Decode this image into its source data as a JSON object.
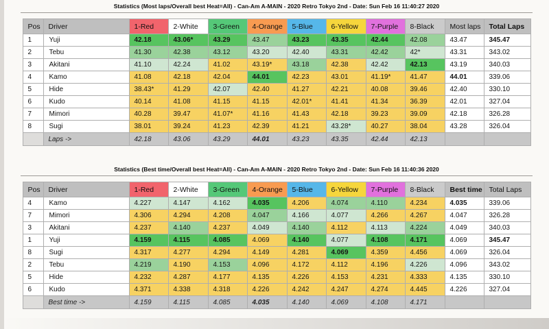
{
  "columns": {
    "pos": "Pos",
    "driver": "Driver",
    "lanes": [
      {
        "label": "1-Red",
        "color": "#f1646c"
      },
      {
        "label": "2-White",
        "color": "#ffffff"
      },
      {
        "label": "3-Green",
        "color": "#55c878"
      },
      {
        "label": "4-Orange",
        "color": "#f89b51"
      },
      {
        "label": "5-Blue",
        "color": "#56b7e9"
      },
      {
        "label": "6-Yellow",
        "color": "#f6d63c"
      },
      {
        "label": "7-Purple",
        "color": "#e171dd"
      },
      {
        "label": "8-Black",
        "color": "#cbcbcb"
      }
    ]
  },
  "tier_colors": {
    "g": "#57c45f",
    "m": "#9ad29b",
    "p": "#cfe6d1",
    "y": "#f7d262",
    "w": "#ffffff"
  },
  "tables": [
    {
      "title": "Statistics (Most laps/Overall best Heat=All) - Can-Am A-MAIN - 2020 Retro Tokyo 2nd - Date: Sun Feb 16 11:40:27 2020",
      "summary_header": "Most laps",
      "summary_header_bold": false,
      "total_header": "Total Laps",
      "total_header_bold": true,
      "footer_label": "Laps ->",
      "rows": [
        {
          "pos": "1",
          "driver": "Yuji",
          "cells": [
            {
              "v": "42.18",
              "t": "g",
              "b": true
            },
            {
              "v": "43.06*",
              "t": "g",
              "b": true
            },
            {
              "v": "43.29",
              "t": "g",
              "b": true
            },
            {
              "v": "43.47",
              "t": "m"
            },
            {
              "v": "43.23",
              "t": "g",
              "b": true
            },
            {
              "v": "43.35",
              "t": "g",
              "b": true
            },
            {
              "v": "42.44",
              "t": "g",
              "b": true
            },
            {
              "v": "42.08",
              "t": "m"
            }
          ],
          "summary": {
            "v": "43.47"
          },
          "total": {
            "v": "345.47",
            "b": true
          }
        },
        {
          "pos": "2",
          "driver": "Tebu",
          "cells": [
            {
              "v": "41.30",
              "t": "m"
            },
            {
              "v": "42.38",
              "t": "m"
            },
            {
              "v": "43.12",
              "t": "m"
            },
            {
              "v": "43.20",
              "t": "p"
            },
            {
              "v": "42.40",
              "t": "p"
            },
            {
              "v": "43.31",
              "t": "m"
            },
            {
              "v": "42.42",
              "t": "m"
            },
            {
              "v": "42*",
              "t": "p"
            }
          ],
          "summary": {
            "v": "43.31"
          },
          "total": {
            "v": "343.02"
          }
        },
        {
          "pos": "3",
          "driver": "Akitani",
          "cells": [
            {
              "v": "41.10",
              "t": "p"
            },
            {
              "v": "42.24",
              "t": "p"
            },
            {
              "v": "41.02",
              "t": "y"
            },
            {
              "v": "43.19*",
              "t": "y"
            },
            {
              "v": "43.18",
              "t": "m"
            },
            {
              "v": "42.38",
              "t": "y"
            },
            {
              "v": "42.42",
              "t": "p"
            },
            {
              "v": "42.13",
              "t": "g",
              "b": true
            }
          ],
          "summary": {
            "v": "43.19"
          },
          "total": {
            "v": "340.03"
          }
        },
        {
          "pos": "4",
          "driver": "Kamo",
          "cells": [
            {
              "v": "41.08",
              "t": "y"
            },
            {
              "v": "42.18",
              "t": "y"
            },
            {
              "v": "42.04",
              "t": "y"
            },
            {
              "v": "44.01",
              "t": "g",
              "b": true
            },
            {
              "v": "42.23",
              "t": "y"
            },
            {
              "v": "43.01",
              "t": "y"
            },
            {
              "v": "41.19*",
              "t": "y"
            },
            {
              "v": "41.47",
              "t": "y"
            }
          ],
          "summary": {
            "v": "44.01",
            "b": true
          },
          "total": {
            "v": "339.06"
          }
        },
        {
          "pos": "5",
          "driver": "Hide",
          "cells": [
            {
              "v": "38.43*",
              "t": "y"
            },
            {
              "v": "41.29",
              "t": "y"
            },
            {
              "v": "42.07",
              "t": "p"
            },
            {
              "v": "42.40",
              "t": "y"
            },
            {
              "v": "41.27",
              "t": "y"
            },
            {
              "v": "42.21",
              "t": "y"
            },
            {
              "v": "40.08",
              "t": "y"
            },
            {
              "v": "39.46",
              "t": "y"
            }
          ],
          "summary": {
            "v": "42.40"
          },
          "total": {
            "v": "330.10"
          }
        },
        {
          "pos": "6",
          "driver": "Kudo",
          "cells": [
            {
              "v": "40.14",
              "t": "y"
            },
            {
              "v": "41.08",
              "t": "y"
            },
            {
              "v": "41.15",
              "t": "y"
            },
            {
              "v": "41.15",
              "t": "y"
            },
            {
              "v": "42.01*",
              "t": "y"
            },
            {
              "v": "41.41",
              "t": "y"
            },
            {
              "v": "41.34",
              "t": "y"
            },
            {
              "v": "36.39",
              "t": "y"
            }
          ],
          "summary": {
            "v": "42.01"
          },
          "total": {
            "v": "327.04"
          }
        },
        {
          "pos": "7",
          "driver": "Mimori",
          "cells": [
            {
              "v": "40.28",
              "t": "y"
            },
            {
              "v": "39.47",
              "t": "y"
            },
            {
              "v": "41.07*",
              "t": "y"
            },
            {
              "v": "41.16",
              "t": "y"
            },
            {
              "v": "41.43",
              "t": "y"
            },
            {
              "v": "42.18",
              "t": "y"
            },
            {
              "v": "39.23",
              "t": "y"
            },
            {
              "v": "39.09",
              "t": "y"
            }
          ],
          "summary": {
            "v": "42.18"
          },
          "total": {
            "v": "326.28"
          }
        },
        {
          "pos": "8",
          "driver": "Sugi",
          "cells": [
            {
              "v": "38.01",
              "t": "y"
            },
            {
              "v": "39.24",
              "t": "y"
            },
            {
              "v": "41.23",
              "t": "y"
            },
            {
              "v": "42.39",
              "t": "y"
            },
            {
              "v": "41.21",
              "t": "y"
            },
            {
              "v": "43.28*",
              "t": "p"
            },
            {
              "v": "40.27",
              "t": "y"
            },
            {
              "v": "38.04",
              "t": "y"
            }
          ],
          "summary": {
            "v": "43.28"
          },
          "total": {
            "v": "326.04"
          }
        }
      ],
      "footer_values": [
        {
          "v": "42.18"
        },
        {
          "v": "43.06"
        },
        {
          "v": "43.29"
        },
        {
          "v": "44.01",
          "b": true
        },
        {
          "v": "43.23"
        },
        {
          "v": "43.35"
        },
        {
          "v": "42.44"
        },
        {
          "v": "42.13"
        }
      ]
    },
    {
      "title": "Statistics (Best time/Overall best Heat=All) - Can-Am A-MAIN - 2020 Retro Tokyo 2nd - Date: Sun Feb 16 11:40:36 2020",
      "summary_header": "Best time",
      "summary_header_bold": true,
      "total_header": "Total Laps",
      "total_header_bold": false,
      "footer_label": "Best time ->",
      "rows": [
        {
          "pos": "4",
          "driver": "Kamo",
          "cells": [
            {
              "v": "4.227",
              "t": "p"
            },
            {
              "v": "4.147",
              "t": "p"
            },
            {
              "v": "4.162",
              "t": "p"
            },
            {
              "v": "4.035",
              "t": "g",
              "b": true
            },
            {
              "v": "4.206",
              "t": "y"
            },
            {
              "v": "4.074",
              "t": "m"
            },
            {
              "v": "4.110",
              "t": "m"
            },
            {
              "v": "4.234",
              "t": "y"
            }
          ],
          "summary": {
            "v": "4.035",
            "b": true
          },
          "total": {
            "v": "339.06"
          }
        },
        {
          "pos": "7",
          "driver": "Mimori",
          "cells": [
            {
              "v": "4.306",
              "t": "y"
            },
            {
              "v": "4.294",
              "t": "y"
            },
            {
              "v": "4.208",
              "t": "y"
            },
            {
              "v": "4.047",
              "t": "m"
            },
            {
              "v": "4.166",
              "t": "p"
            },
            {
              "v": "4.077",
              "t": "p"
            },
            {
              "v": "4.266",
              "t": "y"
            },
            {
              "v": "4.267",
              "t": "y"
            }
          ],
          "summary": {
            "v": "4.047"
          },
          "total": {
            "v": "326.28"
          }
        },
        {
          "pos": "3",
          "driver": "Akitani",
          "cells": [
            {
              "v": "4.237",
              "t": "y"
            },
            {
              "v": "4.140",
              "t": "m"
            },
            {
              "v": "4.237",
              "t": "y"
            },
            {
              "v": "4.049",
              "t": "p"
            },
            {
              "v": "4.140",
              "t": "m"
            },
            {
              "v": "4.112",
              "t": "y"
            },
            {
              "v": "4.113",
              "t": "p"
            },
            {
              "v": "4.224",
              "t": "m"
            }
          ],
          "summary": {
            "v": "4.049"
          },
          "total": {
            "v": "340.03"
          }
        },
        {
          "pos": "1",
          "driver": "Yuji",
          "cells": [
            {
              "v": "4.159",
              "t": "g",
              "b": true
            },
            {
              "v": "4.115",
              "t": "g",
              "b": true
            },
            {
              "v": "4.085",
              "t": "g",
              "b": true
            },
            {
              "v": "4.069",
              "t": "y"
            },
            {
              "v": "4.140",
              "t": "g",
              "b": true
            },
            {
              "v": "4.077",
              "t": "p"
            },
            {
              "v": "4.108",
              "t": "g",
              "b": true
            },
            {
              "v": "4.171",
              "t": "g",
              "b": true
            }
          ],
          "summary": {
            "v": "4.069"
          },
          "total": {
            "v": "345.47",
            "b": true
          }
        },
        {
          "pos": "8",
          "driver": "Sugi",
          "cells": [
            {
              "v": "4.317",
              "t": "y"
            },
            {
              "v": "4.277",
              "t": "y"
            },
            {
              "v": "4.294",
              "t": "y"
            },
            {
              "v": "4.149",
              "t": "y"
            },
            {
              "v": "4.281",
              "t": "y"
            },
            {
              "v": "4.069",
              "t": "g",
              "b": true
            },
            {
              "v": "4.359",
              "t": "y"
            },
            {
              "v": "4.456",
              "t": "y"
            }
          ],
          "summary": {
            "v": "4.069"
          },
          "total": {
            "v": "326.04"
          }
        },
        {
          "pos": "2",
          "driver": "Tebu",
          "cells": [
            {
              "v": "4.219",
              "t": "m"
            },
            {
              "v": "4.190",
              "t": "y"
            },
            {
              "v": "4.153",
              "t": "m"
            },
            {
              "v": "4.096",
              "t": "y"
            },
            {
              "v": "4.172",
              "t": "y"
            },
            {
              "v": "4.112",
              "t": "y"
            },
            {
              "v": "4.196",
              "t": "y"
            },
            {
              "v": "4.226",
              "t": "p"
            }
          ],
          "summary": {
            "v": "4.096"
          },
          "total": {
            "v": "343.02"
          }
        },
        {
          "pos": "5",
          "driver": "Hide",
          "cells": [
            {
              "v": "4.232",
              "t": "y"
            },
            {
              "v": "4.287",
              "t": "y"
            },
            {
              "v": "4.177",
              "t": "y"
            },
            {
              "v": "4.135",
              "t": "y"
            },
            {
              "v": "4.226",
              "t": "y"
            },
            {
              "v": "4.153",
              "t": "y"
            },
            {
              "v": "4.231",
              "t": "y"
            },
            {
              "v": "4.333",
              "t": "y"
            }
          ],
          "summary": {
            "v": "4.135"
          },
          "total": {
            "v": "330.10"
          }
        },
        {
          "pos": "6",
          "driver": "Kudo",
          "cells": [
            {
              "v": "4.371",
              "t": "y"
            },
            {
              "v": "4.338",
              "t": "y"
            },
            {
              "v": "4.318",
              "t": "y"
            },
            {
              "v": "4.226",
              "t": "y"
            },
            {
              "v": "4.242",
              "t": "y"
            },
            {
              "v": "4.247",
              "t": "y"
            },
            {
              "v": "4.274",
              "t": "y"
            },
            {
              "v": "4.445",
              "t": "y"
            }
          ],
          "summary": {
            "v": "4.226"
          },
          "total": {
            "v": "327.04"
          }
        }
      ],
      "footer_values": [
        {
          "v": "4.159"
        },
        {
          "v": "4.115"
        },
        {
          "v": "4.085"
        },
        {
          "v": "4.035",
          "b": true
        },
        {
          "v": "4.140"
        },
        {
          "v": "4.069"
        },
        {
          "v": "4.108"
        },
        {
          "v": "4.171"
        }
      ]
    }
  ]
}
